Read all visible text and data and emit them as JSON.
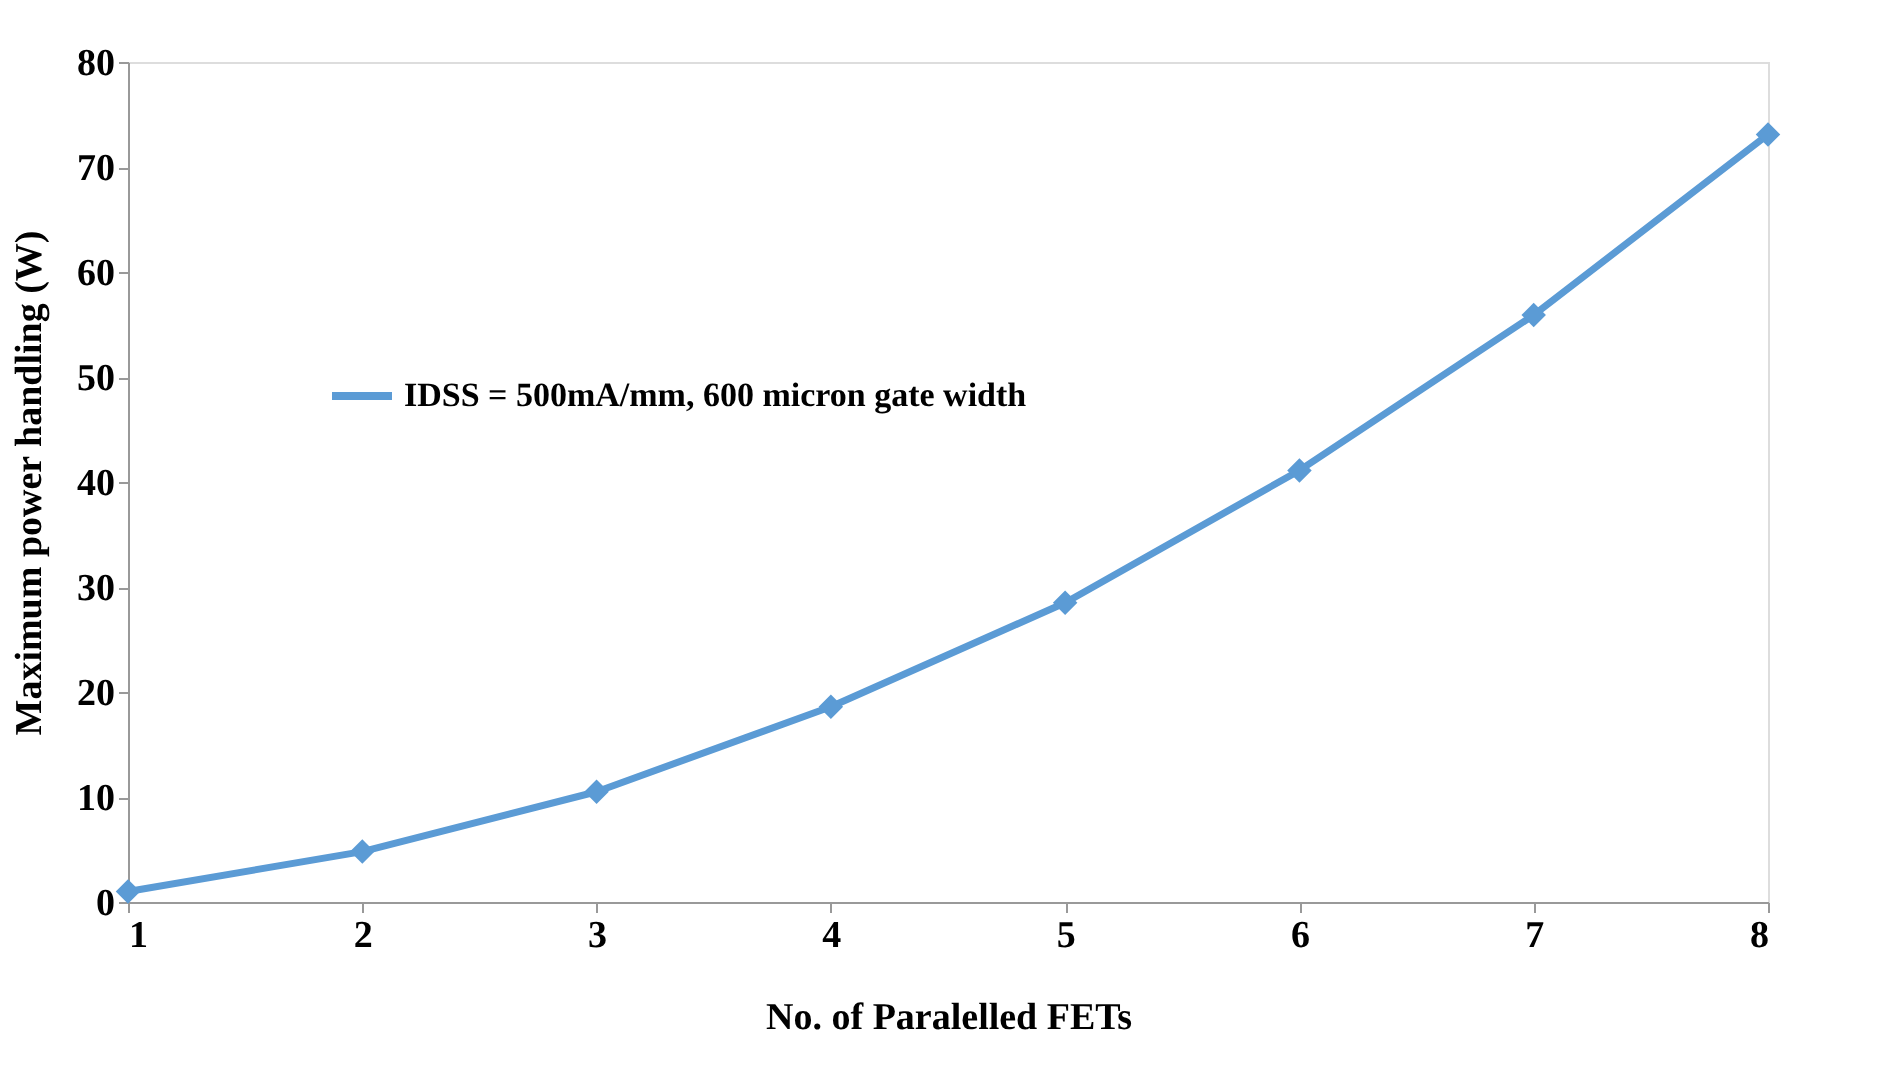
{
  "chart_data": {
    "type": "line",
    "xlabel": "No. of Paralelled FETs",
    "ylabel": "Maximum power handling (W)",
    "x": [
      1,
      2,
      3,
      4,
      5,
      6,
      7,
      8
    ],
    "series": [
      {
        "name": "IDSS = 500mA/mm, 600 micron gate width",
        "color": "#5b9bd5",
        "values": [
          1.0,
          4.8,
          10.5,
          18.6,
          28.5,
          41.1,
          55.9,
          73.1
        ]
      }
    ],
    "xlim": [
      1,
      8
    ],
    "xticks": [
      1,
      2,
      3,
      4,
      5,
      6,
      7,
      8
    ],
    "ylim": [
      0,
      80
    ],
    "yticks": [
      0,
      10,
      20,
      30,
      40,
      50,
      60,
      70,
      80
    ],
    "grid": false,
    "legend": "top left",
    "marker": "diamond",
    "line_style": "solid"
  }
}
